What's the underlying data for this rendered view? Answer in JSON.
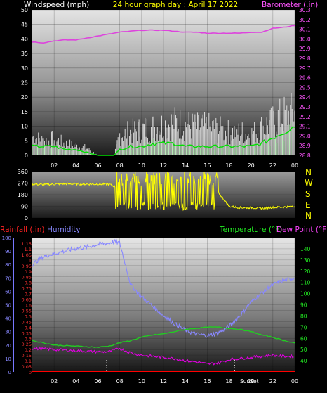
{
  "header": {
    "left": "Windspeed (mph)",
    "center": "24 hour graph day : April 17 2022",
    "right": "Barometer (.in)"
  },
  "legend_bottom": {
    "rain": "Rainfall (.in)",
    "humidity": "Humidity",
    "temp": "Temperature (°F)",
    "dew": "Dew Point (°F)"
  },
  "markers": {
    "sunrise": "",
    "sunset": "SunSet"
  },
  "compass": [
    "N",
    "W",
    "S",
    "E",
    "N"
  ],
  "colors": {
    "barometer": "#dd44dd",
    "wind_avg": "#00e000",
    "gust": "#ffffff",
    "wind_dir": "#ffff00",
    "humidity": "#8888ff",
    "temperature": "#22cc22",
    "dew_point": "#dd00dd",
    "rainfall": "#ff0000"
  },
  "chart_data": [
    {
      "type": "line",
      "title": "24 hour graph day : April 17 2022",
      "x_ticks": [
        "02",
        "04",
        "06",
        "08",
        "10",
        "12",
        "14",
        "16",
        "18",
        "20",
        "22",
        "00"
      ],
      "y_left": {
        "label": "Windspeed (mph)",
        "ticks": [
          0,
          5,
          10,
          15,
          20,
          25,
          30,
          35,
          40,
          45,
          50
        ],
        "ylim": [
          0,
          50
        ]
      },
      "y_right": {
        "label": "Barometer (.in)",
        "ticks": [
          28.8,
          28.9,
          29.0,
          29.1,
          29.2,
          29.3,
          29.4,
          29.5,
          29.6,
          29.7,
          29.8,
          29.9,
          30.0,
          30.1,
          30.2,
          30.3
        ],
        "ylim": [
          28.8,
          30.3
        ]
      },
      "series": [
        {
          "name": "Barometer (.in)",
          "axis": "right",
          "x": [
            0,
            1,
            2,
            3,
            4,
            5,
            6,
            7,
            8,
            9,
            10,
            11,
            12,
            13,
            14,
            15,
            16,
            17,
            18,
            19,
            20,
            21,
            22,
            23,
            24
          ],
          "values": [
            29.97,
            29.96,
            29.98,
            29.99,
            29.99,
            30.01,
            30.03,
            30.05,
            30.07,
            30.08,
            30.09,
            30.09,
            30.09,
            30.08,
            30.07,
            30.07,
            30.06,
            30.06,
            30.06,
            30.06,
            30.07,
            30.07,
            30.11,
            30.12,
            30.14
          ]
        },
        {
          "name": "Gust (mph)",
          "axis": "left",
          "x": [
            0,
            1,
            2,
            3,
            4,
            5,
            6,
            7,
            7.5,
            8,
            9,
            10,
            11,
            12,
            13,
            14,
            15,
            16,
            17,
            18,
            19,
            20,
            21,
            22,
            23,
            24
          ],
          "values": [
            8,
            6,
            7,
            5,
            4,
            3,
            0,
            0,
            0,
            9,
            10,
            11,
            12,
            13,
            14,
            13,
            12,
            12,
            11,
            10,
            10,
            9,
            12,
            14,
            17,
            18
          ]
        },
        {
          "name": "Wind average (mph)",
          "axis": "left",
          "x": [
            0,
            1,
            2,
            3,
            4,
            5,
            6,
            7,
            7.5,
            8,
            9,
            10,
            11,
            12,
            13,
            14,
            15,
            16,
            17,
            18,
            19,
            20,
            21,
            22,
            23,
            24
          ],
          "values": [
            3,
            3,
            3,
            2,
            2,
            1,
            0,
            0,
            0,
            2,
            3,
            3,
            4,
            4,
            4,
            3,
            3,
            3,
            3,
            3,
            3,
            3,
            4,
            6,
            8,
            10
          ]
        }
      ]
    },
    {
      "type": "line",
      "y_left": {
        "ticks": [
          0,
          90,
          180,
          270,
          360
        ],
        "ylim": [
          0,
          360
        ]
      },
      "y_right": {
        "ticks": [
          "N",
          "W",
          "S",
          "E",
          "N"
        ]
      },
      "series": [
        {
          "name": "Wind direction",
          "axis": "left",
          "x": [
            0,
            1,
            2,
            3,
            4,
            5,
            6,
            7,
            8,
            9,
            10,
            11,
            12,
            13,
            14,
            15,
            16,
            17,
            18,
            19,
            20,
            21,
            22,
            23,
            24
          ],
          "values": [
            262,
            258,
            262,
            265,
            263,
            262,
            262,
            262,
            230,
            200,
            170,
            150,
            160,
            180,
            170,
            160,
            150,
            200,
            90,
            80,
            80,
            75,
            82,
            85,
            90
          ]
        }
      ]
    },
    {
      "type": "line",
      "x_ticks": [
        "02",
        "04",
        "06",
        "08",
        "10",
        "12",
        "14",
        "16",
        "18",
        "20",
        "22",
        "00"
      ],
      "y_left": {
        "label": "Rainfall (.in)",
        "ticks": [
          0,
          0.05,
          0.1,
          0.15,
          0.2,
          0.25,
          0.3,
          0.35,
          0.4,
          0.45,
          0.5,
          0.55,
          0.6,
          0.65,
          0.7,
          0.75,
          0.8,
          0.85,
          0.9,
          0.95,
          1,
          1.05,
          1.1,
          1.15
        ],
        "ylim": [
          0,
          1.2
        ]
      },
      "y_left2": {
        "label": "Humidity",
        "ticks": [
          0,
          10,
          20,
          30,
          40,
          50,
          60,
          70,
          80,
          90,
          100
        ],
        "ylim": [
          0,
          100
        ]
      },
      "y_right": {
        "label": "Temperature (°F)",
        "ticks": [
          40,
          50,
          60,
          70,
          80,
          90,
          100,
          110,
          120,
          130,
          140
        ],
        "ylim": [
          30,
          150
        ]
      },
      "series": [
        {
          "name": "Humidity",
          "axis": "left2",
          "x": [
            0,
            1,
            2,
            3,
            4,
            5,
            6,
            7,
            7.5,
            8,
            9,
            10,
            11,
            12,
            13,
            14,
            15,
            16,
            17,
            18,
            19,
            20,
            21,
            22,
            23,
            24
          ],
          "values": [
            80,
            86,
            88,
            90,
            92,
            93,
            95,
            96,
            97,
            96,
            65,
            56,
            49,
            42,
            36,
            31,
            28,
            27,
            29,
            34,
            42,
            52,
            59,
            65,
            68,
            70
          ]
        },
        {
          "name": "Temperature (°F)",
          "axis": "right",
          "x": [
            0,
            2,
            4,
            6,
            7,
            8,
            9,
            10,
            11,
            12,
            13,
            14,
            15,
            16,
            17,
            18,
            19,
            20,
            21,
            22,
            23,
            24
          ],
          "values": [
            58,
            54,
            53,
            52,
            53,
            56,
            58,
            61,
            63,
            64,
            66,
            68,
            69,
            70,
            70,
            69,
            68,
            66,
            63,
            61,
            58,
            56
          ]
        },
        {
          "name": "Dew Point (°F)",
          "axis": "right",
          "x": [
            0,
            2,
            4,
            6,
            7,
            8,
            9,
            10,
            11,
            12,
            13,
            14,
            15,
            16,
            17,
            18,
            19,
            20,
            21,
            22,
            23,
            24
          ],
          "values": [
            51,
            50,
            49,
            48,
            48,
            51,
            47,
            45,
            44,
            43,
            42,
            40,
            39,
            37,
            38,
            41,
            42,
            43,
            44,
            45,
            44,
            44
          ]
        },
        {
          "name": "Rainfall (.in)",
          "axis": "left",
          "x": [
            0,
            24
          ],
          "values": [
            0,
            0
          ]
        }
      ]
    }
  ]
}
